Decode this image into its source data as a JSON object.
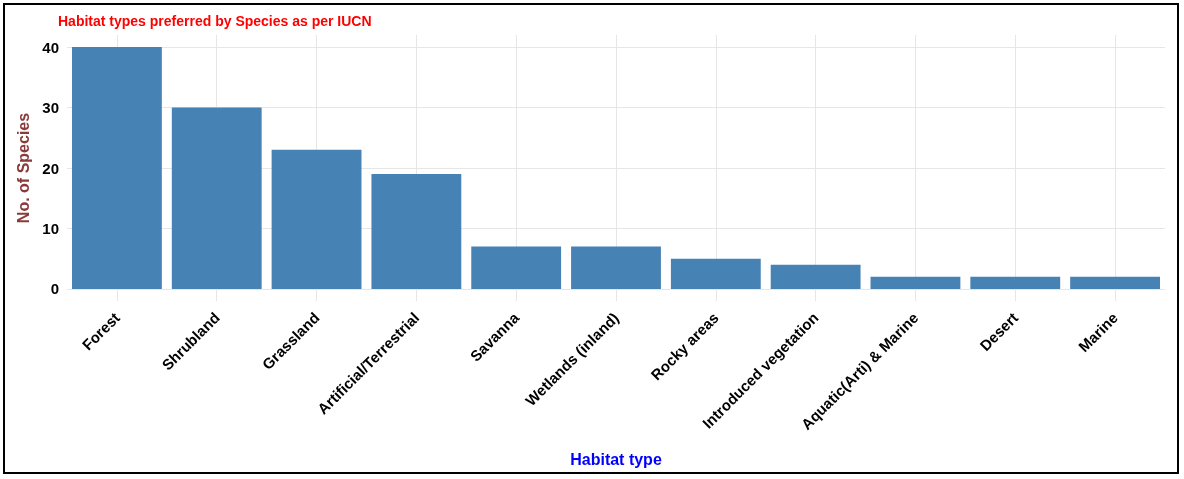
{
  "chart_data": {
    "type": "bar",
    "title": "Habitat types preferred by Species as per IUCN",
    "xlabel": "Habitat type",
    "ylabel": "No. of Species",
    "categories": [
      "Forest",
      "Shrubland",
      "Grassland",
      "Artificial/Terrestrial",
      "Savanna",
      "Wetlands (inland)",
      "Rocky areas",
      "Introduced vegetation",
      "Aquatic(Arti) & Marine",
      "Desert",
      "Marine"
    ],
    "values": [
      40,
      30,
      23,
      19,
      7,
      7,
      5,
      4,
      2,
      2,
      2
    ],
    "color": "#4682b4",
    "ylim": [
      -2,
      42
    ],
    "yticks": [
      0,
      10,
      20,
      30,
      40
    ],
    "grid": true
  }
}
